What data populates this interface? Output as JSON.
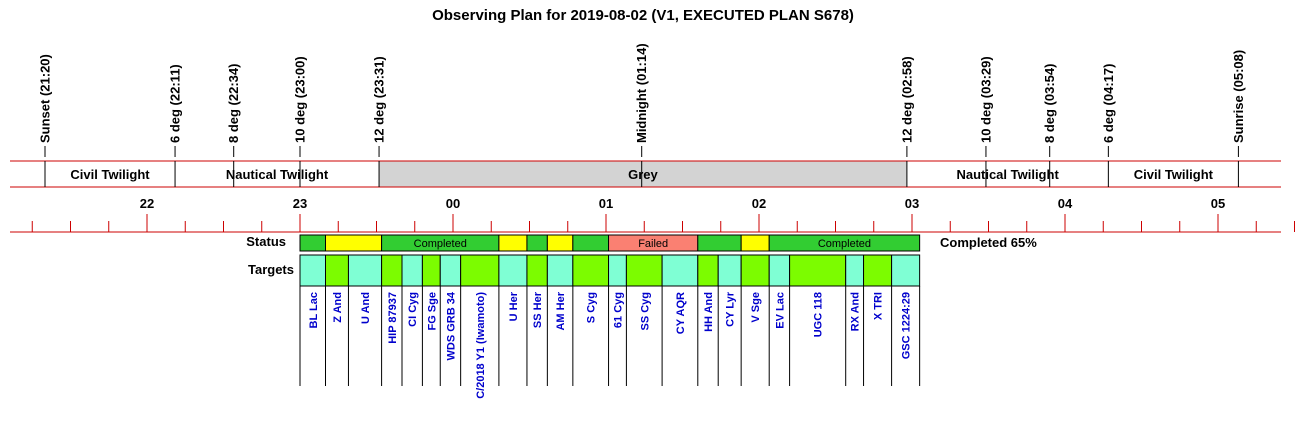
{
  "chart_data": {
    "type": "timeline",
    "title": "Observing Plan for 2019-08-02 (V1, EXECUTED PLAN S678)",
    "time_axis": {
      "start": "21:00",
      "end": "05:30",
      "hour_ticks": [
        {
          "time": "22:00",
          "label": "22"
        },
        {
          "time": "23:00",
          "label": "23"
        },
        {
          "time": "00:00",
          "label": "00"
        },
        {
          "time": "01:00",
          "label": "01"
        },
        {
          "time": "02:00",
          "label": "02"
        },
        {
          "time": "03:00",
          "label": "03"
        },
        {
          "time": "04:00",
          "label": "04"
        },
        {
          "time": "05:00",
          "label": "05"
        }
      ]
    },
    "events": [
      {
        "time": "21:20",
        "label": "Sunset (21:20)"
      },
      {
        "time": "22:11",
        "label": "6 deg (22:11)"
      },
      {
        "time": "22:34",
        "label": "8 deg (22:34)"
      },
      {
        "time": "23:00",
        "label": "10 deg (23:00)"
      },
      {
        "time": "23:31",
        "label": "12 deg (23:31)"
      },
      {
        "time": "01:14",
        "label": "Midnight (01:14)"
      },
      {
        "time": "02:58",
        "label": "12 deg (02:58)"
      },
      {
        "time": "03:29",
        "label": "10 deg (03:29)"
      },
      {
        "time": "03:54",
        "label": "8 deg (03:54)"
      },
      {
        "time": "04:17",
        "label": "6 deg (04:17)"
      },
      {
        "time": "05:08",
        "label": "Sunrise (05:08)"
      }
    ],
    "twilight_bands": [
      {
        "start": "21:20",
        "end": "22:11",
        "label": "Civil Twilight",
        "color": "#ffffff"
      },
      {
        "start": "22:11",
        "end": "23:31",
        "label": "Nautical Twilight",
        "color": "#ffffff"
      },
      {
        "start": "23:31",
        "end": "02:58",
        "label": "Grey",
        "color": "#d3d3d3"
      },
      {
        "start": "02:58",
        "end": "04:17",
        "label": "Nautical Twilight",
        "color": "#ffffff"
      },
      {
        "start": "04:17",
        "end": "05:08",
        "label": "Civil Twilight",
        "color": "#ffffff"
      }
    ],
    "status_label": "Status",
    "targets_label": "Targets",
    "completion_text": "Completed 65%",
    "status_segments": [
      {
        "start": "23:00",
        "end": "23:10",
        "status": "completed",
        "label": ""
      },
      {
        "start": "23:10",
        "end": "23:32",
        "status": "pending",
        "label": ""
      },
      {
        "start": "23:32",
        "end": "00:18",
        "status": "completed",
        "label": "Completed"
      },
      {
        "start": "00:18",
        "end": "00:29",
        "status": "pending",
        "label": ""
      },
      {
        "start": "00:29",
        "end": "00:37",
        "status": "completed",
        "label": ""
      },
      {
        "start": "00:37",
        "end": "00:47",
        "status": "pending",
        "label": ""
      },
      {
        "start": "00:47",
        "end": "01:01",
        "status": "completed",
        "label": ""
      },
      {
        "start": "01:01",
        "end": "01:36",
        "status": "failed",
        "label": "Failed"
      },
      {
        "start": "01:36",
        "end": "01:53",
        "status": "completed",
        "label": ""
      },
      {
        "start": "01:53",
        "end": "02:04",
        "status": "pending",
        "label": ""
      },
      {
        "start": "02:04",
        "end": "03:03",
        "status": "completed",
        "label": "Completed"
      }
    ],
    "targets": [
      {
        "name": "BL Lac",
        "start": "23:00",
        "end": "23:10"
      },
      {
        "name": "Z And",
        "start": "23:10",
        "end": "23:19"
      },
      {
        "name": "U And",
        "start": "23:19",
        "end": "23:32"
      },
      {
        "name": "HIP 87937",
        "start": "23:32",
        "end": "23:40"
      },
      {
        "name": "CI Cyg",
        "start": "23:40",
        "end": "23:48"
      },
      {
        "name": "FG Sge",
        "start": "23:48",
        "end": "23:55"
      },
      {
        "name": "WDS GRB 34",
        "start": "23:55",
        "end": "00:03"
      },
      {
        "name": "C/2018 Y1 (Iwamoto)",
        "start": "00:03",
        "end": "00:18"
      },
      {
        "name": "U Her",
        "start": "00:18",
        "end": "00:29"
      },
      {
        "name": "SS Her",
        "start": "00:29",
        "end": "00:37"
      },
      {
        "name": "AM Her",
        "start": "00:37",
        "end": "00:47"
      },
      {
        "name": "S Cyg",
        "start": "00:47",
        "end": "01:01"
      },
      {
        "name": "61 Cyg",
        "start": "01:01",
        "end": "01:08"
      },
      {
        "name": "SS Cyg",
        "start": "01:08",
        "end": "01:22"
      },
      {
        "name": "CY AQR",
        "start": "01:22",
        "end": "01:36"
      },
      {
        "name": "HH And",
        "start": "01:36",
        "end": "01:44"
      },
      {
        "name": "CY Lyr",
        "start": "01:44",
        "end": "01:53"
      },
      {
        "name": "V Sge",
        "start": "01:53",
        "end": "02:04"
      },
      {
        "name": "EV Lac",
        "start": "02:04",
        "end": "02:12"
      },
      {
        "name": "UGC 118",
        "start": "02:12",
        "end": "02:34"
      },
      {
        "name": "RX And",
        "start": "02:34",
        "end": "02:41"
      },
      {
        "name": "X TRI",
        "start": "02:41",
        "end": "02:52"
      },
      {
        "name": "GSC 1224:29",
        "start": "02:52",
        "end": "03:03"
      }
    ],
    "target_colors": [
      "#7fffd4",
      "#7cfc00"
    ],
    "status_colors": {
      "completed": "#32cd32",
      "pending": "#ffff00",
      "failed": "#fa8072"
    },
    "line_color": "#cc0000",
    "target_label_color": "#0000cc"
  }
}
